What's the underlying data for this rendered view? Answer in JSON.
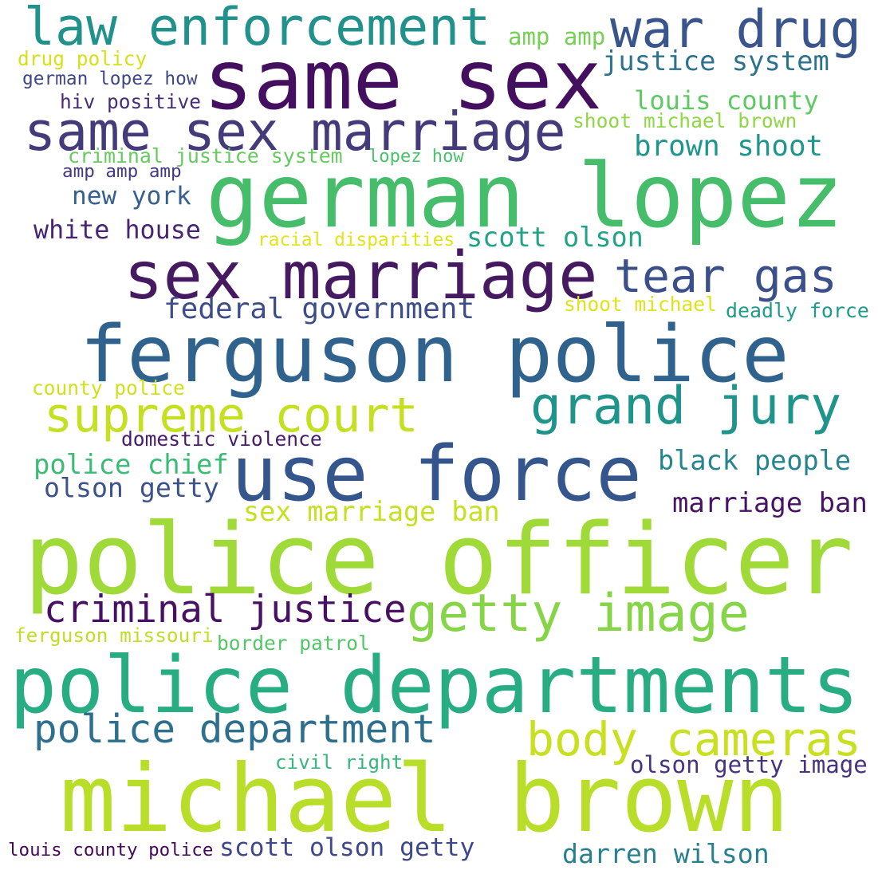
{
  "word_cloud": {
    "background": "#ffffff",
    "words": [
      {
        "text": "same sex",
        "color": "#440f5e"
      },
      {
        "text": "german lopez",
        "color": "#46bd6b"
      },
      {
        "text": "police officer",
        "color": "#a0da39"
      },
      {
        "text": "ferguson police",
        "color": "#30628e"
      },
      {
        "text": "police departments",
        "color": "#27ad81"
      },
      {
        "text": "michael brown",
        "color": "#b8de29"
      },
      {
        "text": "use force",
        "color": "#34568c"
      },
      {
        "text": "sex marriage",
        "color": "#461a61"
      },
      {
        "text": "law enforcement",
        "color": "#21918c"
      },
      {
        "text": "war drug",
        "color": "#39558c"
      },
      {
        "text": "same sex marriage",
        "color": "#433b7a"
      },
      {
        "text": "getty image",
        "color": "#86d549"
      },
      {
        "text": "grand jury",
        "color": "#1f948b"
      },
      {
        "text": "supreme court",
        "color": "#c5e021"
      },
      {
        "text": "body cameras",
        "color": "#c8e020"
      },
      {
        "text": "tear gas",
        "color": "#3b4f8a"
      },
      {
        "text": "criminal justice",
        "color": "#471063"
      },
      {
        "text": "police department",
        "color": "#2e6f8e"
      },
      {
        "text": "louis county",
        "color": "#5ec962"
      },
      {
        "text": "justice system",
        "color": "#2c728e"
      },
      {
        "text": "brown shoot",
        "color": "#1f968b"
      },
      {
        "text": "federal government",
        "color": "#3d4d8a"
      },
      {
        "text": "black people",
        "color": "#25858e"
      },
      {
        "text": "darren wilson",
        "color": "#27808e"
      },
      {
        "text": "scott olson getty",
        "color": "#3f4889"
      },
      {
        "text": "marriage ban",
        "color": "#471365"
      },
      {
        "text": "sex marriage ban",
        "color": "#c5e021"
      },
      {
        "text": "police chief",
        "color": "#3bbb75"
      },
      {
        "text": "olson getty",
        "color": "#3b528b"
      },
      {
        "text": "olson getty image",
        "color": "#46327e"
      },
      {
        "text": "new york",
        "color": "#355f8d"
      },
      {
        "text": "white house",
        "color": "#482475"
      },
      {
        "text": "scott olson",
        "color": "#20a386"
      },
      {
        "text": "drug policy",
        "color": "#d5e21a"
      },
      {
        "text": "amp amp",
        "color": "#75d054"
      },
      {
        "text": "german lopez how",
        "color": "#3f4788"
      },
      {
        "text": "hiv positive",
        "color": "#472c7a"
      },
      {
        "text": "shoot michael brown",
        "color": "#8fd744"
      },
      {
        "text": "criminal justice system",
        "color": "#65cb5e"
      },
      {
        "text": "lopez how",
        "color": "#4ac16d"
      },
      {
        "text": "amp amp amp",
        "color": "#443983"
      },
      {
        "text": "racial disparities",
        "color": "#e2e418"
      },
      {
        "text": "shoot michael",
        "color": "#dde318"
      },
      {
        "text": "deadly force",
        "color": "#1e9b8a"
      },
      {
        "text": "county police",
        "color": "#d0e11c"
      },
      {
        "text": "domestic violence",
        "color": "#481a6c"
      },
      {
        "text": "ferguson missouri",
        "color": "#bddf26"
      },
      {
        "text": "border patrol",
        "color": "#54c568"
      },
      {
        "text": "civil right",
        "color": "#35b779"
      },
      {
        "text": "louis county police",
        "color": "#46085c"
      }
    ]
  }
}
